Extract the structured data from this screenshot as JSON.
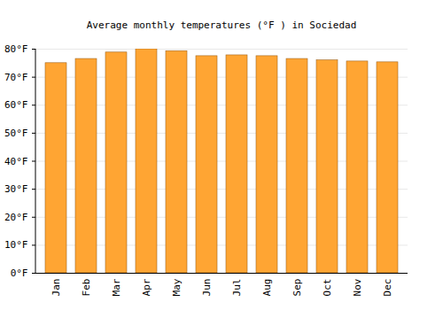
{
  "chart_data": {
    "type": "bar",
    "title": "Average monthly temperatures (°F ) in Sociedad",
    "categories": [
      "Jan",
      "Feb",
      "Mar",
      "Apr",
      "May",
      "Jun",
      "Jul",
      "Aug",
      "Sep",
      "Oct",
      "Nov",
      "Dec"
    ],
    "values": [
      75.0,
      76.5,
      78.8,
      80.0,
      79.3,
      77.5,
      77.8,
      77.5,
      76.5,
      76.0,
      75.6,
      75.3
    ],
    "color": "#ffa533",
    "ylim": [
      0,
      80
    ],
    "yticks": [
      {
        "value": 0,
        "label": "0°F"
      },
      {
        "value": 10,
        "label": "10°F"
      },
      {
        "value": 20,
        "label": "20°F"
      },
      {
        "value": 30,
        "label": "30°F"
      },
      {
        "value": 40,
        "label": "40°F"
      },
      {
        "value": 50,
        "label": "50°F"
      },
      {
        "value": 60,
        "label": "60°F"
      },
      {
        "value": 70,
        "label": "70°F"
      },
      {
        "value": 80,
        "label": "80°F"
      }
    ],
    "grid": true
  }
}
